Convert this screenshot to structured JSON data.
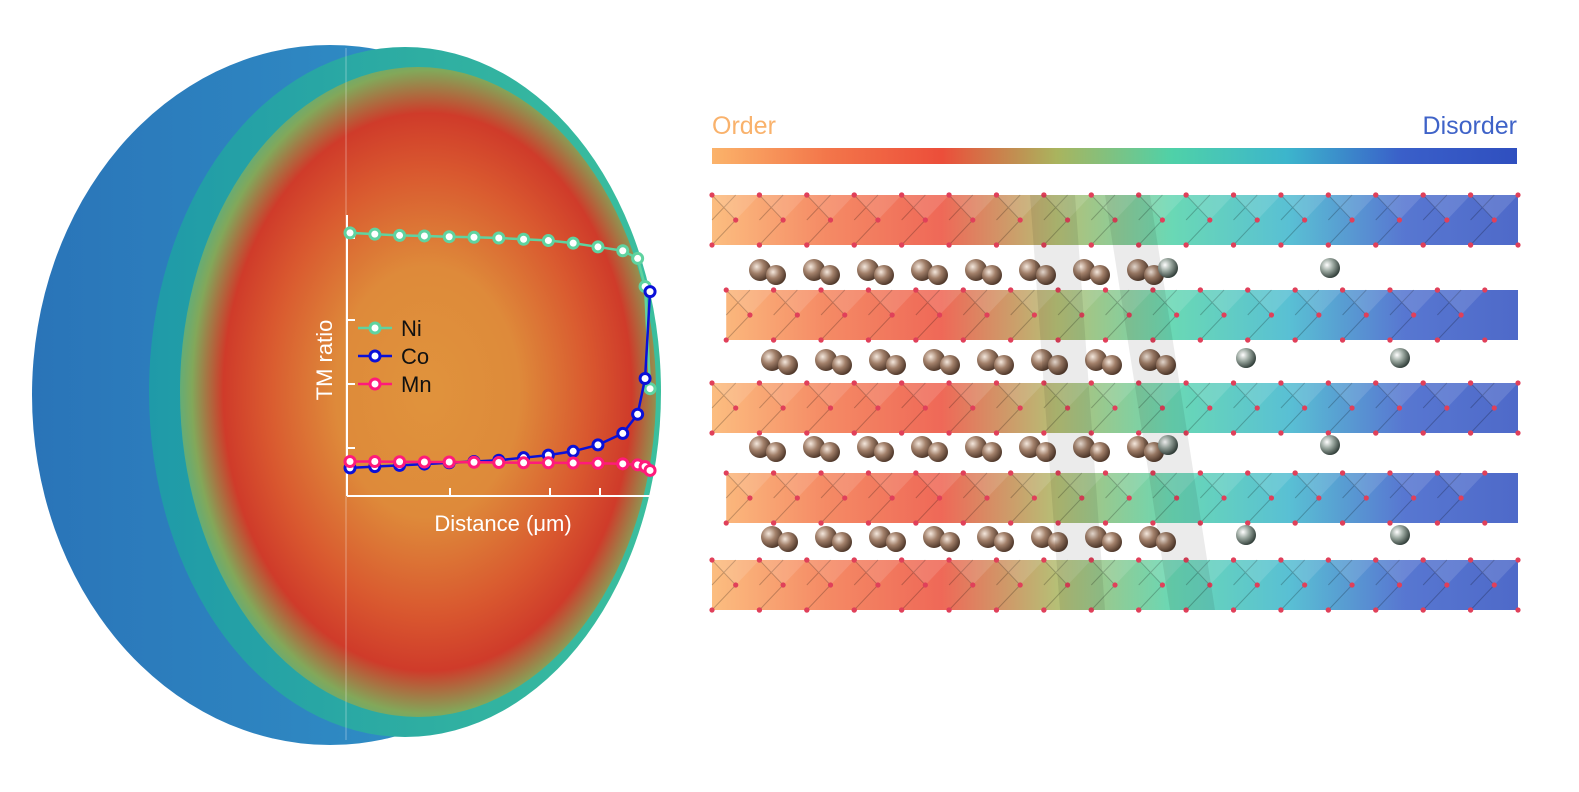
{
  "scale_bar": {
    "left_label": "Order",
    "right_label": "Disorder",
    "left_color": "#f9b26c",
    "right_color": "#3f63c8",
    "gradient_stops": [
      "#fbb36a",
      "#f3764a",
      "#ec4e3a",
      "#a9b45e",
      "#4fd1a8",
      "#3cb5cc",
      "#3a5fc9",
      "#2f4fbf"
    ]
  },
  "chart_data": {
    "type": "line",
    "title": "",
    "xlabel": "Distance (μm)",
    "ylabel": "TM ratio",
    "x": [
      0,
      1,
      2,
      3,
      4,
      5,
      6,
      7,
      8,
      9,
      10,
      11,
      11.6,
      11.9,
      12.1
    ],
    "series": [
      {
        "name": "Ni",
        "color": "#5fd3a0",
        "values": [
          0.93,
          0.925,
          0.92,
          0.918,
          0.915,
          0.913,
          0.91,
          0.905,
          0.9,
          0.89,
          0.875,
          0.86,
          0.83,
          0.72,
          0.32
        ]
      },
      {
        "name": "Co",
        "color": "#0a10d8",
        "values": [
          0.01,
          0.015,
          0.02,
          0.025,
          0.03,
          0.035,
          0.04,
          0.05,
          0.06,
          0.075,
          0.1,
          0.145,
          0.22,
          0.36,
          0.7
        ]
      },
      {
        "name": "Mn",
        "color": "#ff1a7a",
        "values": [
          0.035,
          0.035,
          0.034,
          0.033,
          0.033,
          0.032,
          0.031,
          0.03,
          0.03,
          0.029,
          0.028,
          0.026,
          0.022,
          0.015,
          0.0
        ]
      }
    ],
    "xlim": [
      0,
      12.3
    ],
    "ylim": [
      -0.1,
      1.0
    ],
    "grid": false,
    "legend": "center-left"
  },
  "lattice": {
    "columns": 17,
    "layers": 5,
    "cation_color": "#8a6a55",
    "anion_color": "#e0405a"
  }
}
